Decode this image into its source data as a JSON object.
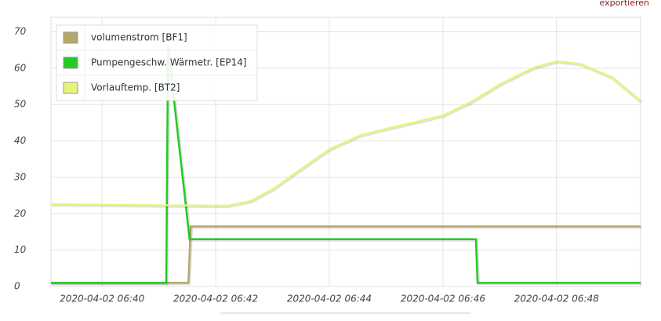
{
  "export_link": "exportieren",
  "chart_data": {
    "type": "line",
    "xlim": [
      399.1,
      409.48
    ],
    "ylim": [
      0,
      74
    ],
    "xticks": [
      {
        "value": 400,
        "label": "2020-04-02 06:40"
      },
      {
        "value": 402,
        "label": "2020-04-02 06:42"
      },
      {
        "value": 404,
        "label": "2020-04-02 06:44"
      },
      {
        "value": 406,
        "label": "2020-04-02 06:46"
      },
      {
        "value": 408,
        "label": "2020-04-02 06:48"
      }
    ],
    "yticks": [
      0,
      10,
      20,
      30,
      40,
      50,
      60,
      70
    ],
    "grid": true,
    "legend": "top-left",
    "series": [
      {
        "name": "volumenstrom [BF1]",
        "color": "#b5a86a",
        "x": [
          399.1,
          401.52,
          401.56,
          409.48
        ],
        "values": [
          1,
          1,
          16.5,
          16.5
        ]
      },
      {
        "name": "Pumpengeschw. Wärmetr. [EP14]",
        "color": "#22cc22",
        "x": [
          399.1,
          401.13,
          401.16,
          401.54,
          406.58,
          406.61,
          409.48
        ],
        "values": [
          1,
          1,
          66,
          13,
          13,
          1,
          1
        ]
      },
      {
        "name": "Vorlauftemp. [BT2]",
        "color": "#e6f57a",
        "x": [
          399.1,
          401.1,
          402.21,
          402.62,
          403.03,
          403.45,
          404,
          404.55,
          405.1,
          405.66,
          406,
          406.48,
          407.03,
          407.59,
          408,
          408.41,
          408.97,
          409.48
        ],
        "values": [
          22.6,
          22.3,
          22.2,
          23.5,
          27,
          31.7,
          37.7,
          41.6,
          43.7,
          45.7,
          47,
          50.6,
          55.8,
          60.1,
          61.9,
          61.2,
          57.5,
          50.9
        ]
      }
    ]
  }
}
